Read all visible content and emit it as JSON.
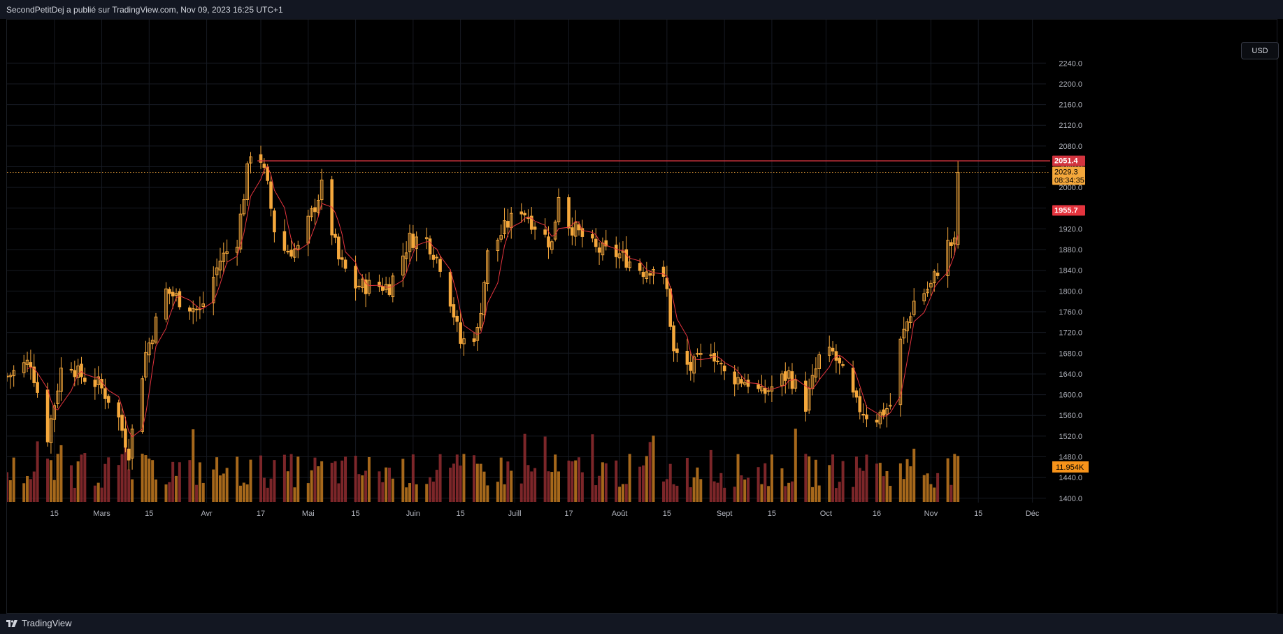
{
  "header": {
    "title": "SecondPetitDej a publié sur TradingView.com, Nov 09, 2023 16:25 UTC+1"
  },
  "footer": {
    "brand": "TradingView"
  },
  "currency_button": "USD",
  "colors": {
    "background": "#000000",
    "candle": "#f5a83c",
    "wick": "#f5a83c",
    "ma_line": "#e5343e",
    "resistance_line": "#d3343f",
    "volume_up": "#b8731e",
    "volume_down": "#8a2a2e",
    "grid": "#161a22",
    "axis_text": "#b2b5be"
  },
  "chart_data": {
    "type": "candlestick",
    "title": "",
    "xlabel": "",
    "ylabel": "",
    "y_axis": {
      "ticks": [
        1400,
        1440,
        1480,
        1520,
        1560,
        1600,
        1640,
        1680,
        1720,
        1760,
        1800,
        1840,
        1880,
        1920,
        1960,
        2000,
        2040,
        2080,
        2120,
        2160,
        2200,
        2240
      ],
      "tick_labels": [
        "1400.0",
        "1440.0",
        "1480.0",
        "1520.0",
        "1560.0",
        "1600.0",
        "1640.0",
        "1680.0",
        "1720.0",
        "1760.0",
        "1800.0",
        "1840.0",
        "1880.0",
        "1920.0",
        "1960.0",
        "2000.0",
        "2040.0",
        "2080.0",
        "2120.0",
        "2160.0",
        "2200.0",
        "2240.0"
      ],
      "range": [
        1393,
        2262
      ]
    },
    "x_axis": {
      "range": [
        "2023-02-01",
        "2023-12-05"
      ],
      "tick_dates": [
        "2023-02-15",
        "2023-03-01",
        "2023-03-15",
        "2023-04-01",
        "2023-04-17",
        "2023-05-01",
        "2023-05-15",
        "2023-06-01",
        "2023-06-15",
        "2023-07-01",
        "2023-07-17",
        "2023-08-01",
        "2023-08-15",
        "2023-09-01",
        "2023-09-15",
        "2023-10-01",
        "2023-10-16",
        "2023-11-01",
        "2023-11-15",
        "2023-12-01"
      ],
      "tick_labels": [
        "15",
        "Mars",
        "15",
        "Avr",
        "17",
        "Mai",
        "15",
        "Juin",
        "15",
        "Juill",
        "17",
        "Août",
        "15",
        "Sept",
        "15",
        "Oct",
        "16",
        "Nov",
        "15",
        "Déc"
      ]
    },
    "price_anchors": [
      {
        "date": "2023-02-01",
        "close": 1635
      },
      {
        "date": "2023-02-08",
        "close": 1665
      },
      {
        "date": "2023-02-13",
        "close": 1520
      },
      {
        "date": "2023-02-18",
        "close": 1680
      },
      {
        "date": "2023-02-22",
        "close": 1640
      },
      {
        "date": "2023-02-28",
        "close": 1620
      },
      {
        "date": "2023-03-05",
        "close": 1575
      },
      {
        "date": "2023-03-09",
        "close": 1490
      },
      {
        "date": "2023-03-14",
        "close": 1680
      },
      {
        "date": "2023-03-20",
        "close": 1800
      },
      {
        "date": "2023-03-25",
        "close": 1780
      },
      {
        "date": "2023-03-30",
        "close": 1760
      },
      {
        "date": "2023-04-05",
        "close": 1860
      },
      {
        "date": "2023-04-10",
        "close": 1900
      },
      {
        "date": "2023-04-13",
        "close": 2030
      },
      {
        "date": "2023-04-15",
        "close": 2110
      },
      {
        "date": "2023-04-19",
        "close": 2000
      },
      {
        "date": "2023-04-22",
        "close": 1880
      },
      {
        "date": "2023-04-28",
        "close": 1880
      },
      {
        "date": "2023-05-05",
        "close": 2000
      },
      {
        "date": "2023-05-10",
        "close": 1860
      },
      {
        "date": "2023-05-15",
        "close": 1810
      },
      {
        "date": "2023-05-25",
        "close": 1810
      },
      {
        "date": "2023-05-31",
        "close": 1900
      },
      {
        "date": "2023-06-05",
        "close": 1900
      },
      {
        "date": "2023-06-10",
        "close": 1840
      },
      {
        "date": "2023-06-15",
        "close": 1700
      },
      {
        "date": "2023-06-20",
        "close": 1720
      },
      {
        "date": "2023-06-23",
        "close": 1870
      },
      {
        "date": "2023-06-29",
        "close": 1930
      },
      {
        "date": "2023-07-03",
        "close": 1960
      },
      {
        "date": "2023-07-08",
        "close": 1920
      },
      {
        "date": "2023-07-12",
        "close": 1890
      },
      {
        "date": "2023-07-14",
        "close": 1990
      },
      {
        "date": "2023-07-17",
        "close": 1930
      },
      {
        "date": "2023-07-25",
        "close": 1880
      },
      {
        "date": "2023-08-01",
        "close": 1870
      },
      {
        "date": "2023-08-08",
        "close": 1840
      },
      {
        "date": "2023-08-12",
        "close": 1850
      },
      {
        "date": "2023-08-15",
        "close": 1800
      },
      {
        "date": "2023-08-17",
        "close": 1680
      },
      {
        "date": "2023-08-22",
        "close": 1650
      },
      {
        "date": "2023-08-28",
        "close": 1690
      },
      {
        "date": "2023-09-01",
        "close": 1640
      },
      {
        "date": "2023-09-08",
        "close": 1625
      },
      {
        "date": "2023-09-12",
        "close": 1600
      },
      {
        "date": "2023-09-20",
        "close": 1640
      },
      {
        "date": "2023-09-25",
        "close": 1580
      },
      {
        "date": "2023-09-29",
        "close": 1670
      },
      {
        "date": "2023-10-03",
        "close": 1680
      },
      {
        "date": "2023-10-06",
        "close": 1640
      },
      {
        "date": "2023-10-10",
        "close": 1580
      },
      {
        "date": "2023-10-15",
        "close": 1550
      },
      {
        "date": "2023-10-20",
        "close": 1580
      },
      {
        "date": "2023-10-23",
        "close": 1700
      },
      {
        "date": "2023-10-27",
        "close": 1780
      },
      {
        "date": "2023-11-01",
        "close": 1810
      },
      {
        "date": "2023-11-06",
        "close": 1890
      },
      {
        "date": "2023-11-08",
        "close": 1890
      },
      {
        "date": "2023-11-09",
        "close": 2029.3
      }
    ],
    "ma_series_name": "",
    "resistance_level": 2051.4,
    "current_price": 2029.3,
    "last_high": 2051.4,
    "price_labels": [
      {
        "text": "2051.4",
        "value": 2051.4,
        "color": "#d3343f"
      },
      {
        "text": "2029.3",
        "value": 2029.3,
        "color": "#f5a83c",
        "subtext": "08:34:35"
      },
      {
        "text": "1955.7",
        "value": 1955.7,
        "color": "#e5343e"
      }
    ],
    "volume": {
      "last_label": "11.954K",
      "last_label_color": "#f7931a"
    },
    "grid": true,
    "legend": "none"
  }
}
